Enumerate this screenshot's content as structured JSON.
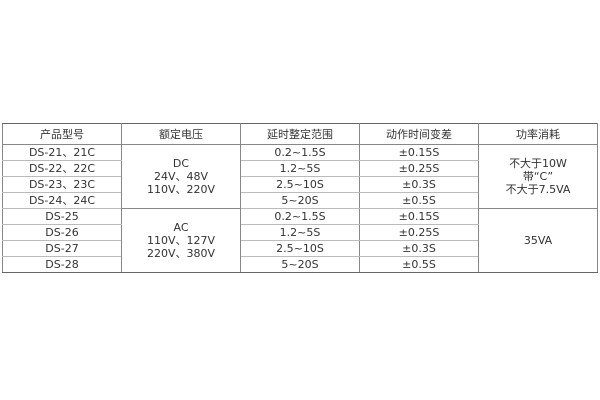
{
  "headers": [
    "产品型号",
    "额定电压",
    "延时整定范围",
    "动作时间变差",
    "功率消耗"
  ],
  "groups": [
    {
      "voltage": [
        "DC",
        "24V、48V",
        "110V、220V"
      ],
      "power": [
        "不大于10W",
        "带“C”",
        "不大于7.5VA"
      ],
      "rows": [
        {
          "model": "DS-21、21C",
          "range": "0.2~1.5S",
          "variance": "±0.15S"
        },
        {
          "model": "DS-22、22C",
          "range": "1.2~5S",
          "variance": "±0.25S"
        },
        {
          "model": "DS-23、23C",
          "range": "2.5~10S",
          "variance": "±0.3S"
        },
        {
          "model": "DS-24、24C",
          "range": "5~20S",
          "variance": "±0.5S"
        }
      ]
    },
    {
      "voltage": [
        "AC",
        "110V、127V",
        "220V、380V"
      ],
      "power": [
        "35VA"
      ],
      "rows": [
        {
          "model": "DS-25",
          "range": "0.2~1.5S",
          "variance": "±0.15S"
        },
        {
          "model": "DS-26",
          "range": "1.2~5S",
          "variance": "±0.25S"
        },
        {
          "model": "DS-27",
          "range": "2.5~10S",
          "variance": "±0.3S"
        },
        {
          "model": "DS-28",
          "range": "5~20S",
          "variance": "±0.5S"
        }
      ]
    }
  ]
}
